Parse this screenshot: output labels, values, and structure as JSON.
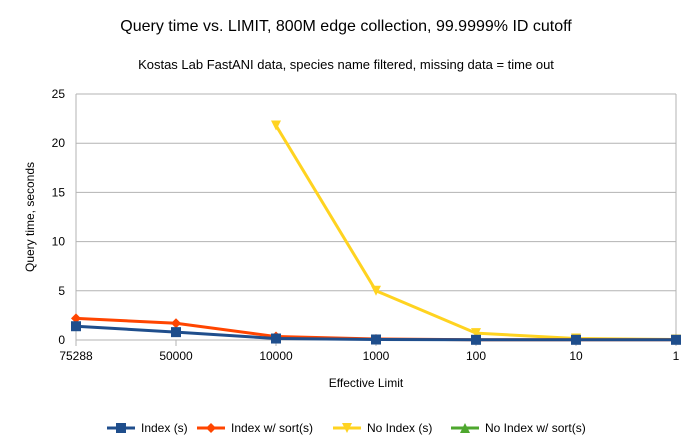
{
  "chart_data": {
    "type": "line",
    "title": "Query time vs. LIMIT, 800M edge collection, 99.9999% ID cutoff",
    "subtitle": "Kostas Lab FastANI data, species name filtered, missing data = time out",
    "xlabel": "Effective Limit",
    "ylabel": "Query time, seconds",
    "categories": [
      "75288",
      "50000",
      "10000",
      "1000",
      "100",
      "10",
      "1"
    ],
    "ylim": [
      0,
      25
    ],
    "yticks": [
      0,
      5,
      10,
      15,
      20,
      25
    ],
    "grid": true,
    "legend_position": "bottom",
    "series": [
      {
        "name": "Index (s)",
        "color": "#1f4e8c",
        "marker": "square",
        "values": [
          1.4,
          0.8,
          0.15,
          0.05,
          0.02,
          0.02,
          0.02
        ]
      },
      {
        "name": "Index w/ sort(s)",
        "color": "#ff4500",
        "marker": "diamond",
        "values": [
          2.2,
          1.7,
          0.35,
          0.1,
          0.03,
          0.02,
          0.02
        ]
      },
      {
        "name": "No Index (s)",
        "color": "#ffd320",
        "marker": "triangle-down",
        "values": [
          null,
          null,
          21.8,
          5.0,
          0.7,
          0.15,
          0.05
        ]
      },
      {
        "name": "No Index w/ sort(s)",
        "color": "#4ea72e",
        "marker": "triangle-up",
        "values": [
          null,
          null,
          null,
          null,
          null,
          null,
          0.05
        ]
      }
    ]
  }
}
